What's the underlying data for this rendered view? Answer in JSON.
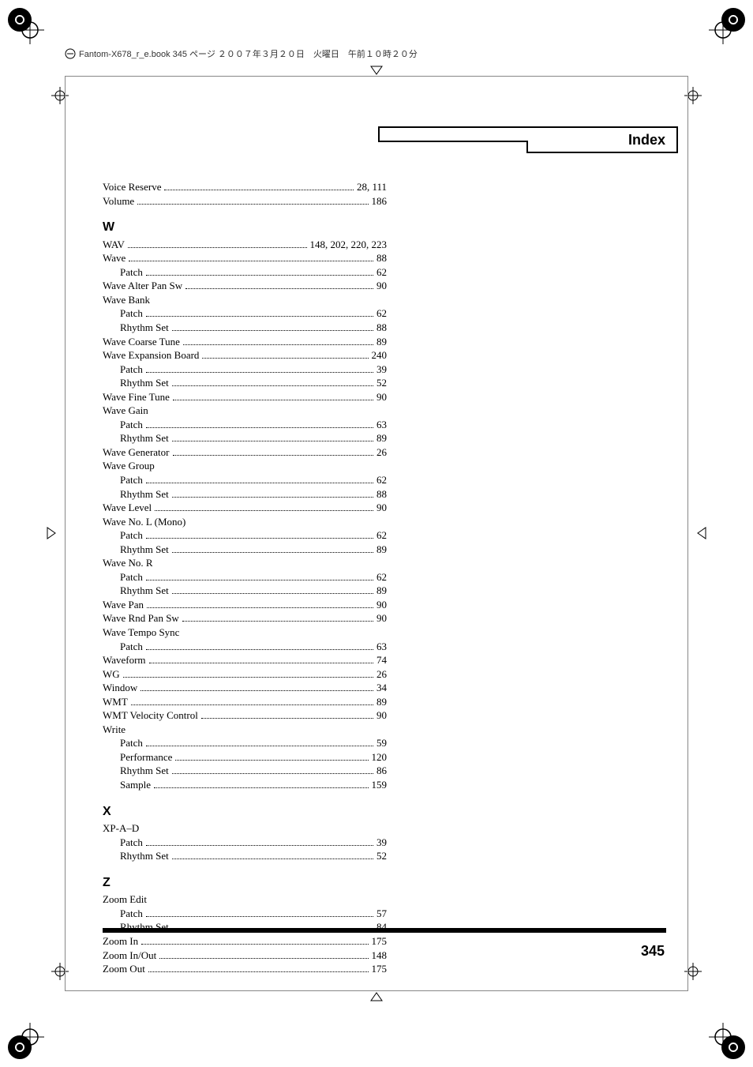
{
  "header_strip": "Fantom-X678_r_e.book 345 ページ ２００７年３月２０日　火曜日　午前１０時２０分",
  "tab_label": "Index",
  "page_number": "345",
  "continuation": [
    {
      "label": "Voice Reserve",
      "page": "28, 111",
      "sub": false
    },
    {
      "label": "Volume",
      "page": "186",
      "sub": false
    }
  ],
  "sections": [
    {
      "head": "W",
      "rows": [
        {
          "label": "WAV",
          "page": "148, 202, 220, 223",
          "sub": false
        },
        {
          "label": "Wave",
          "page": "88",
          "sub": false
        },
        {
          "label": "Patch",
          "page": "62",
          "sub": true
        },
        {
          "label": "Wave Alter Pan Sw",
          "page": "90",
          "sub": false
        },
        {
          "label": "Wave Bank",
          "page": "",
          "sub": false
        },
        {
          "label": "Patch",
          "page": "62",
          "sub": true
        },
        {
          "label": "Rhythm Set",
          "page": "88",
          "sub": true
        },
        {
          "label": "Wave Coarse Tune",
          "page": "89",
          "sub": false
        },
        {
          "label": "Wave Expansion Board",
          "page": "240",
          "sub": false
        },
        {
          "label": "Patch",
          "page": "39",
          "sub": true
        },
        {
          "label": "Rhythm Set",
          "page": "52",
          "sub": true
        },
        {
          "label": "Wave Fine Tune",
          "page": "90",
          "sub": false
        },
        {
          "label": "Wave Gain",
          "page": "",
          "sub": false
        },
        {
          "label": "Patch",
          "page": "63",
          "sub": true
        },
        {
          "label": "Rhythm Set",
          "page": "89",
          "sub": true
        },
        {
          "label": "Wave Generator",
          "page": "26",
          "sub": false
        },
        {
          "label": "Wave Group",
          "page": "",
          "sub": false
        },
        {
          "label": "Patch",
          "page": "62",
          "sub": true
        },
        {
          "label": "Rhythm Set",
          "page": "88",
          "sub": true
        },
        {
          "label": "Wave Level",
          "page": "90",
          "sub": false
        },
        {
          "label": "Wave No. L (Mono)",
          "page": "",
          "sub": false
        },
        {
          "label": "Patch",
          "page": "62",
          "sub": true
        },
        {
          "label": "Rhythm Set",
          "page": "89",
          "sub": true
        },
        {
          "label": "Wave No. R",
          "page": "",
          "sub": false
        },
        {
          "label": "Patch",
          "page": "62",
          "sub": true
        },
        {
          "label": "Rhythm Set",
          "page": "89",
          "sub": true
        },
        {
          "label": "Wave Pan",
          "page": "90",
          "sub": false
        },
        {
          "label": "Wave Rnd Pan Sw",
          "page": "90",
          "sub": false
        },
        {
          "label": "Wave Tempo Sync",
          "page": "",
          "sub": false
        },
        {
          "label": "Patch",
          "page": "63",
          "sub": true
        },
        {
          "label": "Waveform",
          "page": "74",
          "sub": false
        },
        {
          "label": "WG",
          "page": "26",
          "sub": false
        },
        {
          "label": "Window",
          "page": "34",
          "sub": false
        },
        {
          "label": "WMT",
          "page": "89",
          "sub": false
        },
        {
          "label": "WMT Velocity Control",
          "page": "90",
          "sub": false
        },
        {
          "label": "Write",
          "page": "",
          "sub": false
        },
        {
          "label": "Patch",
          "page": "59",
          "sub": true
        },
        {
          "label": "Performance",
          "page": "120",
          "sub": true
        },
        {
          "label": "Rhythm Set",
          "page": "86",
          "sub": true
        },
        {
          "label": "Sample",
          "page": "159",
          "sub": true
        }
      ]
    },
    {
      "head": "X",
      "rows": [
        {
          "label": "XP-A–D",
          "page": "",
          "sub": false
        },
        {
          "label": "Patch",
          "page": "39",
          "sub": true
        },
        {
          "label": "Rhythm Set",
          "page": "52",
          "sub": true
        }
      ]
    },
    {
      "head": "Z",
      "rows": [
        {
          "label": "Zoom Edit",
          "page": "",
          "sub": false
        },
        {
          "label": "Patch",
          "page": "57",
          "sub": true
        },
        {
          "label": "Rhythm Set",
          "page": "84",
          "sub": true
        },
        {
          "label": "Zoom In",
          "page": "175",
          "sub": false
        },
        {
          "label": "Zoom In/Out",
          "page": "148",
          "sub": false
        },
        {
          "label": "Zoom Out",
          "page": "175",
          "sub": false
        }
      ]
    }
  ]
}
